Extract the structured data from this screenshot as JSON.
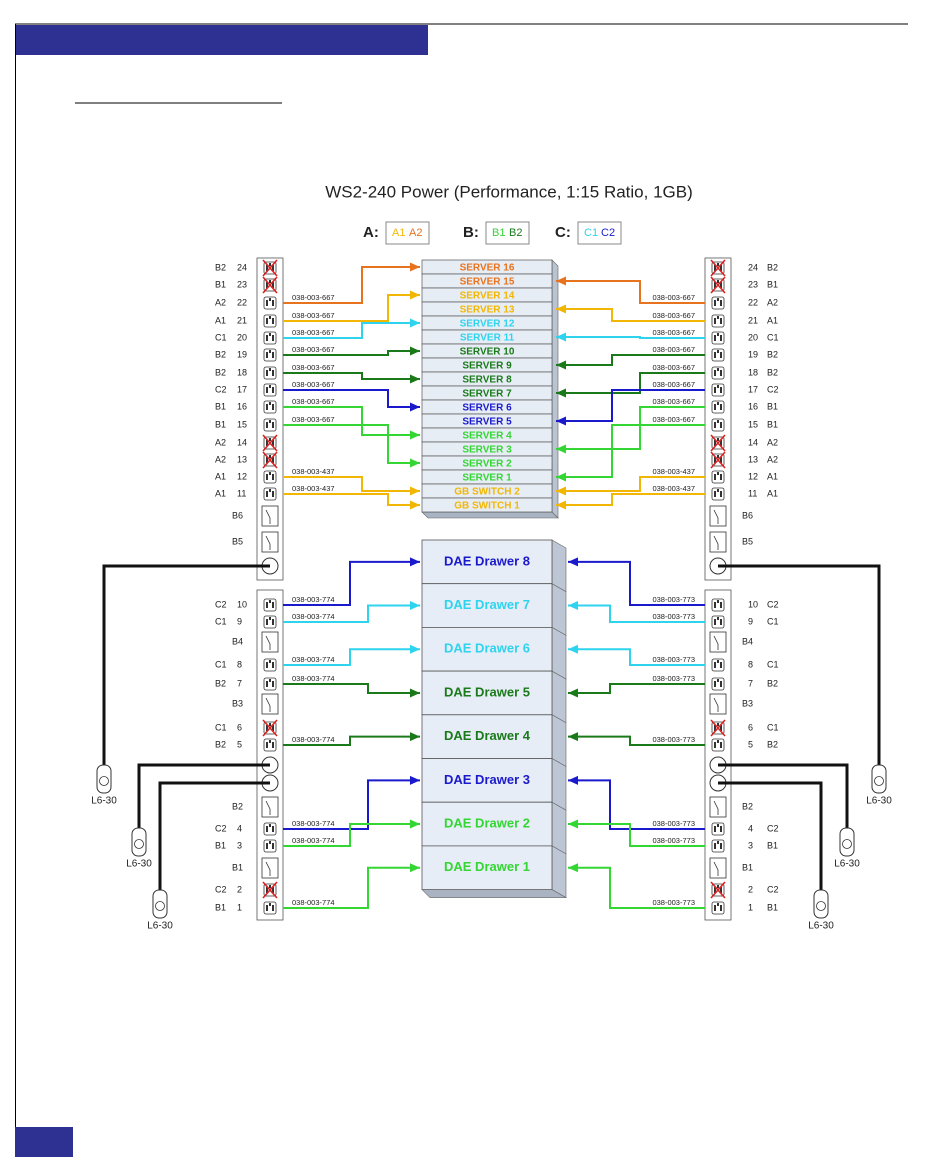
{
  "title": "WS2-240 Power (Performance, 1:15 Ratio, 1GB)",
  "legend": [
    {
      "key": "A:",
      "items": [
        {
          "text": "A1",
          "color": "#f2b705"
        },
        {
          "text": "A2",
          "color": "#e8731e"
        }
      ]
    },
    {
      "key": "B:",
      "items": [
        {
          "text": "B1",
          "color": "#33d633"
        },
        {
          "text": "B2",
          "color": "#1a7a1a"
        }
      ]
    },
    {
      "key": "C:",
      "items": [
        {
          "text": "C1",
          "color": "#2ed3ee"
        },
        {
          "text": "C2",
          "color": "#1a1acc"
        }
      ]
    }
  ],
  "servers": [
    {
      "label": "SERVER 16",
      "color": "#e8731e"
    },
    {
      "label": "SERVER 15",
      "color": "#e8731e"
    },
    {
      "label": "SERVER 14",
      "color": "#f2b705"
    },
    {
      "label": "SERVER 13",
      "color": "#f2b705"
    },
    {
      "label": "SERVER 12",
      "color": "#2ed3ee"
    },
    {
      "label": "SERVER 11",
      "color": "#2ed3ee"
    },
    {
      "label": "SERVER 10",
      "color": "#1a7a1a"
    },
    {
      "label": "SERVER 9",
      "color": "#1a7a1a"
    },
    {
      "label": "SERVER 8",
      "color": "#1a7a1a"
    },
    {
      "label": "SERVER 7",
      "color": "#1a7a1a"
    },
    {
      "label": "SERVER 6",
      "color": "#1a1acc"
    },
    {
      "label": "SERVER 5",
      "color": "#1a1acc"
    },
    {
      "label": "SERVER 4",
      "color": "#33d633"
    },
    {
      "label": "SERVER 3",
      "color": "#33d633"
    },
    {
      "label": "SERVER 2",
      "color": "#33d633"
    },
    {
      "label": "SERVER 1",
      "color": "#33d633"
    },
    {
      "label": "GB SWITCH 2",
      "color": "#f2b705"
    },
    {
      "label": "GB SWITCH 1",
      "color": "#f2b705"
    }
  ],
  "drawers": [
    {
      "label": "DAE Drawer 8",
      "color": "#1a1acc"
    },
    {
      "label": "DAE Drawer 7",
      "color": "#2ed3ee"
    },
    {
      "label": "DAE Drawer 6",
      "color": "#2ed3ee"
    },
    {
      "label": "DAE Drawer 5",
      "color": "#1a7a1a"
    },
    {
      "label": "DAE Drawer 4",
      "color": "#1a7a1a"
    },
    {
      "label": "DAE Drawer 3",
      "color": "#1a1acc"
    },
    {
      "label": "DAE Drawer 2",
      "color": "#33d633"
    },
    {
      "label": "DAE Drawer 1",
      "color": "#33d633"
    }
  ],
  "pdus": {
    "top_left": {
      "rows": [
        {
          "phase": "B2",
          "outlet": "24",
          "off": true
        },
        {
          "phase": "B1",
          "outlet": "23",
          "off": true
        },
        {
          "phase": "A2",
          "outlet": "22",
          "cable": "038-003-667",
          "feeds": "SERVER 16"
        },
        {
          "phase": "A1",
          "outlet": "21",
          "cable": "038-003-667",
          "feeds": "SERVER 14"
        },
        {
          "phase": "C1",
          "outlet": "20",
          "cable": "038-003-667",
          "feeds": "SERVER 12"
        },
        {
          "phase": "B2",
          "outlet": "19",
          "cable": "038-003-667",
          "feeds": "SERVER 10"
        },
        {
          "phase": "B2",
          "outlet": "18",
          "cable": "038-003-667",
          "feeds": "SERVER 8"
        },
        {
          "phase": "C2",
          "outlet": "17",
          "cable": "038-003-667",
          "feeds": "SERVER 6"
        },
        {
          "phase": "B1",
          "outlet": "16",
          "cable": "038-003-667",
          "feeds": "SERVER 4"
        },
        {
          "phase": "B1",
          "outlet": "15",
          "cable": "038-003-667",
          "feeds": "SERVER 2"
        },
        {
          "phase": "A2",
          "outlet": "14",
          "off": true
        },
        {
          "phase": "A2",
          "outlet": "13",
          "off": true
        },
        {
          "phase": "A1",
          "outlet": "12",
          "cable": "038-003-437",
          "feeds": "GB SWITCH 2"
        },
        {
          "phase": "A1",
          "outlet": "11",
          "cable": "038-003-437",
          "feeds": "GB SWITCH 1"
        },
        {
          "breaker": "B6"
        },
        {
          "breaker": "B5"
        }
      ]
    },
    "top_right": {
      "rows": [
        {
          "phase": "B2",
          "outlet": "24",
          "off": true
        },
        {
          "phase": "B1",
          "outlet": "23",
          "off": true
        },
        {
          "phase": "A2",
          "outlet": "22",
          "cable": "038-003-667",
          "feeds": "SERVER 15"
        },
        {
          "phase": "A1",
          "outlet": "21",
          "cable": "038-003-667",
          "feeds": "SERVER 13"
        },
        {
          "phase": "C1",
          "outlet": "20",
          "cable": "038-003-667",
          "feeds": "SERVER 11"
        },
        {
          "phase": "B2",
          "outlet": "19",
          "cable": "038-003-667",
          "feeds": "SERVER 9"
        },
        {
          "phase": "B2",
          "outlet": "18",
          "cable": "038-003-667",
          "feeds": "SERVER 7"
        },
        {
          "phase": "C2",
          "outlet": "17",
          "cable": "038-003-667",
          "feeds": "SERVER 5"
        },
        {
          "phase": "B1",
          "outlet": "16",
          "cable": "038-003-667",
          "feeds": "SERVER 3"
        },
        {
          "phase": "B1",
          "outlet": "15",
          "cable": "038-003-667",
          "feeds": "SERVER 1"
        },
        {
          "phase": "A2",
          "outlet": "14",
          "off": true
        },
        {
          "phase": "A2",
          "outlet": "13",
          "off": true
        },
        {
          "phase": "A1",
          "outlet": "12",
          "cable": "038-003-437",
          "feeds": "GB SWITCH 2"
        },
        {
          "phase": "A1",
          "outlet": "11",
          "cable": "038-003-437",
          "feeds": "GB SWITCH 1"
        },
        {
          "breaker": "B6"
        },
        {
          "breaker": "B5"
        }
      ]
    },
    "bottom_left": {
      "rows": [
        {
          "phase": "C2",
          "outlet": "10",
          "cable": "038-003-774",
          "feeds": "DAE Drawer 8"
        },
        {
          "phase": "C1",
          "outlet": "9",
          "cable": "038-003-774",
          "feeds": "DAE Drawer 7"
        },
        {
          "breaker": "B4"
        },
        {
          "phase": "C1",
          "outlet": "8",
          "cable": "038-003-774",
          "feeds": "DAE Drawer 6"
        },
        {
          "phase": "B2",
          "outlet": "7",
          "cable": "038-003-774",
          "feeds": "DAE Drawer 5"
        },
        {
          "breaker": "B3"
        },
        {
          "phase": "C1",
          "outlet": "6",
          "off": true
        },
        {
          "phase": "B2",
          "outlet": "5",
          "cable": "038-003-774",
          "feeds": "DAE Drawer 4"
        },
        {
          "breaker": "B2"
        },
        {
          "phase": "C2",
          "outlet": "4",
          "cable": "038-003-774",
          "feeds": "DAE Drawer 3"
        },
        {
          "phase": "B1",
          "outlet": "3",
          "cable": "038-003-774",
          "feeds": "DAE Drawer 2"
        },
        {
          "breaker": "B1"
        },
        {
          "phase": "C2",
          "outlet": "2",
          "off": true
        },
        {
          "phase": "B1",
          "outlet": "1",
          "cable": "038-003-774",
          "feeds": "DAE Drawer 1"
        }
      ]
    },
    "bottom_right": {
      "rows": [
        {
          "phase": "C2",
          "outlet": "10",
          "cable": "038-003-773",
          "feeds": "DAE Drawer 8"
        },
        {
          "phase": "C1",
          "outlet": "9",
          "cable": "038-003-773",
          "feeds": "DAE Drawer 7"
        },
        {
          "breaker": "B4"
        },
        {
          "phase": "C1",
          "outlet": "8",
          "cable": "038-003-773",
          "feeds": "DAE Drawer 6"
        },
        {
          "phase": "B2",
          "outlet": "7",
          "cable": "038-003-773",
          "feeds": "DAE Drawer 5"
        },
        {
          "breaker": "B3"
        },
        {
          "phase": "C1",
          "outlet": "6",
          "off": true
        },
        {
          "phase": "B2",
          "outlet": "5",
          "cable": "038-003-773",
          "feeds": "DAE Drawer 4"
        },
        {
          "breaker": "B2"
        },
        {
          "phase": "C2",
          "outlet": "4",
          "cable": "038-003-773",
          "feeds": "DAE Drawer 3"
        },
        {
          "phase": "B1",
          "outlet": "3",
          "cable": "038-003-773",
          "feeds": "DAE Drawer 2"
        },
        {
          "breaker": "B1"
        },
        {
          "phase": "C2",
          "outlet": "2",
          "off": true
        },
        {
          "phase": "B1",
          "outlet": "1",
          "cable": "038-003-773",
          "feeds": "DAE Drawer 1"
        }
      ]
    }
  },
  "plugs": [
    "L6-30",
    "L6-30",
    "L6-30",
    "L6-30",
    "L6-30",
    "L6-30"
  ]
}
